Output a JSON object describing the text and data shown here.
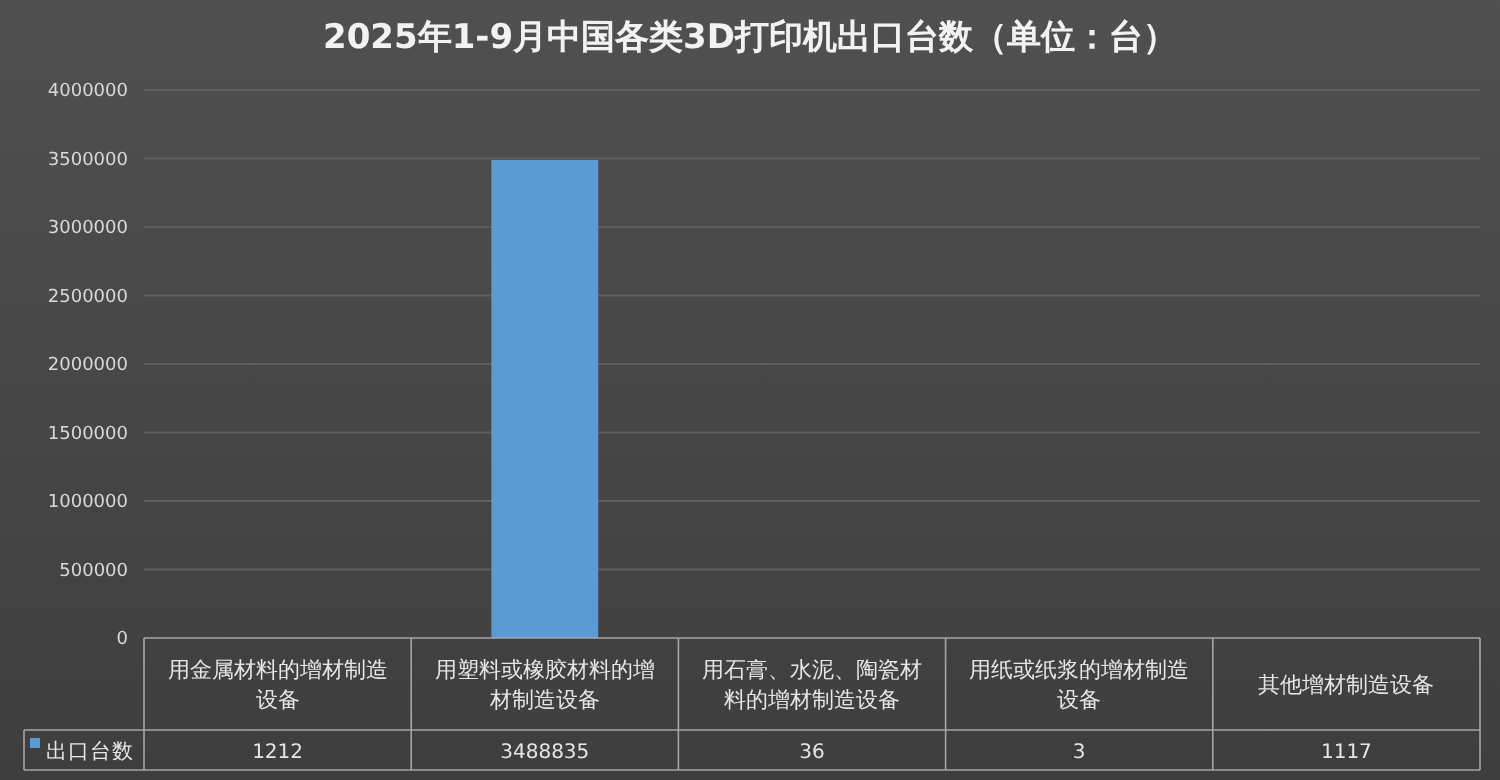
{
  "chart_data": {
    "type": "bar",
    "title": "2025年1-9月中国各类3D打印机出口台数（单位：台）",
    "categories": [
      "用金属材料的增材制造设备",
      "用塑料或橡胶材料的增材制造设备",
      "用石膏、水泥、陶瓷材料的增材制造设备",
      "用纸或纸浆的增材制造设备",
      "其他增材制造设备"
    ],
    "series": [
      {
        "name": "出口台数",
        "color": "#5b9bd5",
        "values": [
          1212,
          3488835,
          36,
          3,
          1117
        ]
      }
    ],
    "ylim": [
      0,
      4000000
    ],
    "yticks": [
      0,
      500000,
      1000000,
      1500000,
      2000000,
      2500000,
      3000000,
      3500000,
      4000000
    ],
    "grid": "y",
    "legend": "bottom left",
    "data_labels": true
  }
}
